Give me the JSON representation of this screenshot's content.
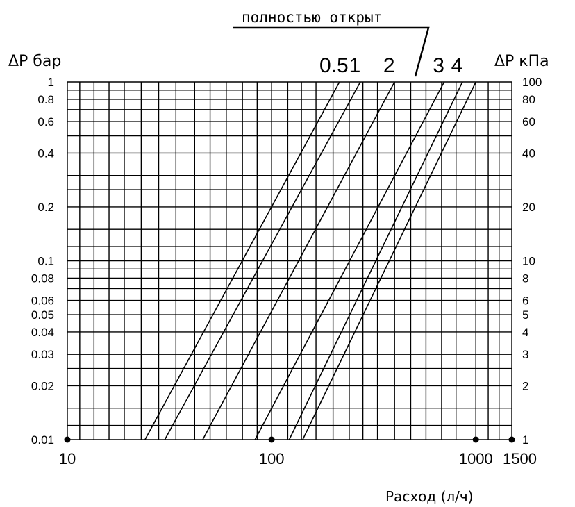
{
  "chart_data": {
    "type": "line",
    "title": "",
    "annotation": "полностью открыт",
    "xlabel": "Расход (л/ч)",
    "ylabel_left": "ΔP бар",
    "ylabel_right": "ΔP кПа",
    "x_scale": "log",
    "y_scale": "log",
    "xlim": [
      10,
      1500
    ],
    "ylim": [
      0.01,
      1
    ],
    "grid": true,
    "x_tick_labels": [
      "10",
      "100",
      "1000",
      "1500"
    ],
    "x_ticks": [
      10,
      100,
      1000,
      1500
    ],
    "y_left_ticks": [
      {
        "value": 1,
        "label": "1"
      },
      {
        "value": 0.8,
        "label": "0.8"
      },
      {
        "value": 0.6,
        "label": "0.6"
      },
      {
        "value": 0.4,
        "label": "0.4"
      },
      {
        "value": 0.2,
        "label": "0.2"
      },
      {
        "value": 0.1,
        "label": "0.1"
      },
      {
        "value": 0.08,
        "label": "0.08"
      },
      {
        "value": 0.06,
        "label": "0.06"
      },
      {
        "value": 0.05,
        "label": "0.05"
      },
      {
        "value": 0.04,
        "label": "0.04"
      },
      {
        "value": 0.03,
        "label": "0.03"
      },
      {
        "value": 0.02,
        "label": "0.02"
      },
      {
        "value": 0.01,
        "label": "0.01"
      }
    ],
    "y_right_ticks": [
      {
        "value": 1,
        "label": "100"
      },
      {
        "value": 0.8,
        "label": "80"
      },
      {
        "value": 0.6,
        "label": "60"
      },
      {
        "value": 0.4,
        "label": "40"
      },
      {
        "value": 0.2,
        "label": "20"
      },
      {
        "value": 0.1,
        "label": "10"
      },
      {
        "value": 0.08,
        "label": "8"
      },
      {
        "value": 0.06,
        "label": "6"
      },
      {
        "value": 0.05,
        "label": "5"
      },
      {
        "value": 0.04,
        "label": "4"
      },
      {
        "value": 0.03,
        "label": "3"
      },
      {
        "value": 0.02,
        "label": "2"
      },
      {
        "value": 0.01,
        "label": "1"
      }
    ],
    "x_gridlines": [
      10,
      11.5,
      13.5,
      16,
      19,
      23,
      28,
      34,
      42,
      50,
      60,
      72,
      85,
      100,
      120,
      140,
      165,
      200,
      240,
      280,
      330,
      400,
      480,
      570,
      680,
      800,
      1000,
      1150,
      1300,
      1500
    ],
    "y_gridlines": [
      0.01,
      0.012,
      0.015,
      0.02,
      0.025,
      0.03,
      0.04,
      0.05,
      0.06,
      0.07,
      0.08,
      0.09,
      0.1,
      0.12,
      0.15,
      0.2,
      0.25,
      0.3,
      0.4,
      0.5,
      0.6,
      0.7,
      0.8,
      0.9,
      1
    ],
    "series": [
      {
        "name": "0.5",
        "x": [
          24,
          215
        ],
        "y": [
          0.01,
          1
        ]
      },
      {
        "name": "1",
        "x": [
          30,
          272
        ],
        "y": [
          0.01,
          1
        ]
      },
      {
        "name": "2",
        "x": [
          46,
          400
        ],
        "y": [
          0.01,
          1
        ]
      },
      {
        "name": "3",
        "x": [
          83,
          700
        ],
        "y": [
          0.01,
          1
        ]
      },
      {
        "name": "4",
        "x": [
          122,
          860
        ],
        "y": [
          0.01,
          1
        ]
      },
      {
        "name": "",
        "x": [
          142,
          1000
        ],
        "y": [
          0.01,
          1
        ]
      }
    ],
    "markers": [
      {
        "x": 10,
        "y": 0.01
      },
      {
        "x": 100,
        "y": 0.01
      },
      {
        "x": 1000,
        "y": 0.01
      },
      {
        "x": 1500,
        "y": 0.01
      }
    ]
  }
}
